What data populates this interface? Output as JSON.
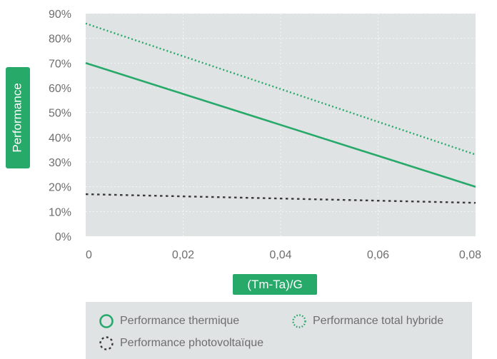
{
  "chart_data": {
    "type": "line",
    "xlabel": "(Tm-Ta)/G",
    "ylabel": "Performance",
    "x_ticks": [
      "0",
      "0,02",
      "0,04",
      "0,06",
      "0,08"
    ],
    "y_ticks": [
      "0%",
      "10%",
      "20%",
      "30%",
      "40%",
      "50%",
      "60%",
      "70%",
      "80%",
      "90%"
    ],
    "xlim": [
      0,
      0.08
    ],
    "ylim": [
      0,
      90
    ],
    "grid": true,
    "legend_position": "bottom",
    "series": [
      {
        "name": "Performance thermique",
        "x": [
          0,
          0.08
        ],
        "y": [
          70,
          20
        ],
        "color": "#27a96a",
        "style": "solid"
      },
      {
        "name": "Performance total hybride",
        "x": [
          0,
          0.08
        ],
        "y": [
          86,
          33
        ],
        "color": "#27a96a",
        "style": "dotted"
      },
      {
        "name": "Performance photovoltaïque",
        "x": [
          0,
          0.08
        ],
        "y": [
          17,
          13.5
        ],
        "color": "#3a3a3a",
        "style": "dashed"
      }
    ]
  },
  "colors": {
    "accent": "#27a96a",
    "plot_background": "#dfe3e4",
    "grid": "#f5f7f7",
    "dark_series": "#3a3a3a"
  }
}
